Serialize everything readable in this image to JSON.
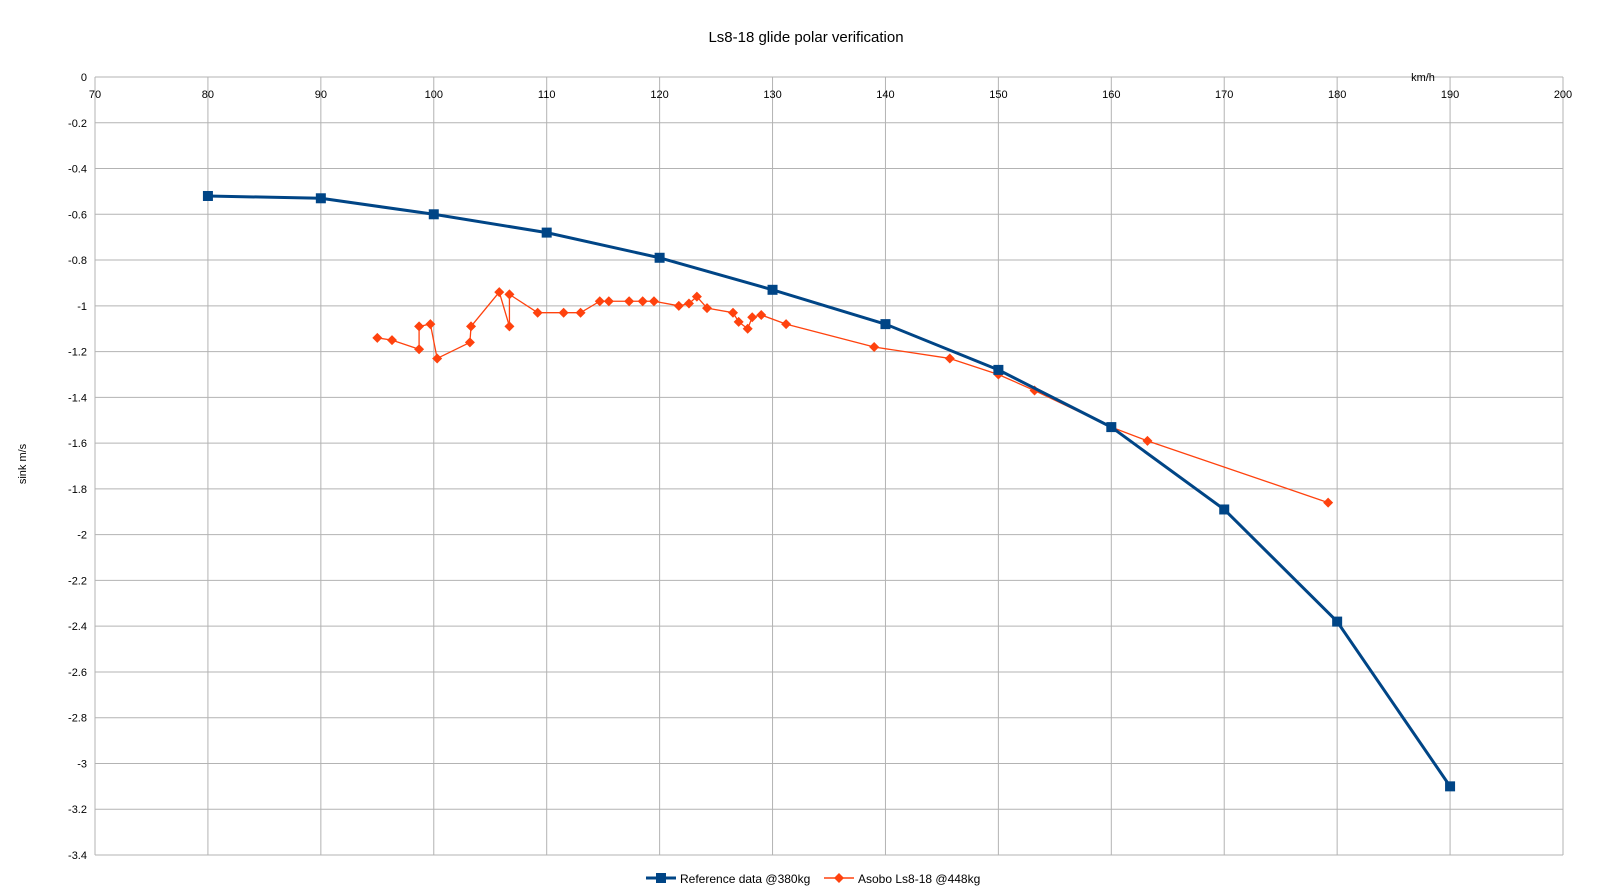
{
  "chart_data": {
    "type": "line",
    "title": "Ls8-18 glide polar verification",
    "xlabel": "km/h",
    "ylabel": "sink m/s",
    "xlim": [
      70,
      200
    ],
    "ylim": [
      -3.4,
      0
    ],
    "x_ticks": [
      70,
      80,
      90,
      100,
      110,
      120,
      130,
      140,
      150,
      160,
      170,
      180,
      190,
      200
    ],
    "y_ticks": [
      0,
      -0.2,
      -0.4,
      -0.6,
      -0.8,
      -1,
      -1.2,
      -1.4,
      -1.6,
      -1.8,
      -2,
      -2.2,
      -2.4,
      -2.6,
      -2.8,
      -3,
      -3.2,
      -3.4
    ],
    "x_axis_position": "top",
    "grid": true,
    "legend_position": "bottom",
    "series": [
      {
        "name": "Reference data @380kg",
        "color": "#004586",
        "marker": "square",
        "points": [
          [
            80,
            -0.52
          ],
          [
            90,
            -0.53
          ],
          [
            100,
            -0.6
          ],
          [
            110,
            -0.68
          ],
          [
            120,
            -0.79
          ],
          [
            130,
            -0.93
          ],
          [
            140,
            -1.08
          ],
          [
            150,
            -1.28
          ],
          [
            160,
            -1.53
          ],
          [
            170,
            -1.89
          ],
          [
            180,
            -2.38
          ],
          [
            190,
            -3.1
          ]
        ]
      },
      {
        "name": "Asobo Ls8-18 @448kg",
        "color": "#ff420e",
        "marker": "diamond",
        "points": [
          [
            95.0,
            -1.14
          ],
          [
            96.3,
            -1.15
          ],
          [
            98.7,
            -1.19
          ],
          [
            98.7,
            -1.09
          ],
          [
            99.7,
            -1.08
          ],
          [
            100.3,
            -1.23
          ],
          [
            103.2,
            -1.16
          ],
          [
            103.3,
            -1.09
          ],
          [
            105.8,
            -0.94
          ],
          [
            106.7,
            -1.09
          ],
          [
            106.7,
            -0.95
          ],
          [
            109.2,
            -1.03
          ],
          [
            111.5,
            -1.03
          ],
          [
            113.0,
            -1.03
          ],
          [
            114.7,
            -0.98
          ],
          [
            115.5,
            -0.98
          ],
          [
            117.3,
            -0.98
          ],
          [
            118.5,
            -0.98
          ],
          [
            119.5,
            -0.98
          ],
          [
            121.7,
            -1.0
          ],
          [
            122.6,
            -0.99
          ],
          [
            123.3,
            -0.96
          ],
          [
            124.2,
            -1.01
          ],
          [
            126.5,
            -1.03
          ],
          [
            127.0,
            -1.07
          ],
          [
            127.8,
            -1.1
          ],
          [
            128.2,
            -1.05
          ],
          [
            129.0,
            -1.04
          ],
          [
            131.2,
            -1.08
          ],
          [
            139.0,
            -1.18
          ],
          [
            145.7,
            -1.23
          ],
          [
            150.0,
            -1.3
          ],
          [
            153.2,
            -1.37
          ],
          [
            160.0,
            -1.53
          ],
          [
            163.2,
            -1.59
          ],
          [
            179.2,
            -1.86
          ]
        ]
      }
    ]
  }
}
